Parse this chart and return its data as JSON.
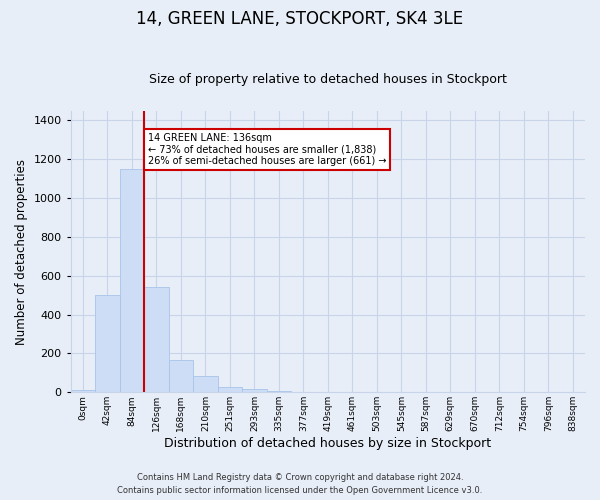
{
  "title": "14, GREEN LANE, STOCKPORT, SK4 3LE",
  "subtitle": "Size of property relative to detached houses in Stockport",
  "xlabel": "Distribution of detached houses by size in Stockport",
  "ylabel": "Number of detached properties",
  "bar_values": [
    10,
    500,
    1150,
    540,
    165,
    85,
    28,
    18,
    8,
    0,
    0,
    0,
    0,
    0,
    0,
    0,
    0,
    0,
    0,
    0,
    0
  ],
  "bin_labels": [
    "0sqm",
    "42sqm",
    "84sqm",
    "126sqm",
    "168sqm",
    "210sqm",
    "251sqm",
    "293sqm",
    "335sqm",
    "377sqm",
    "419sqm",
    "461sqm",
    "503sqm",
    "545sqm",
    "587sqm",
    "629sqm",
    "670sqm",
    "712sqm",
    "754sqm",
    "796sqm",
    "838sqm"
  ],
  "bar_color": "#ccddf5",
  "bar_edge_color": "#a8c4e8",
  "vline_x": 3,
  "vline_color": "#cc0000",
  "annotation_title": "14 GREEN LANE: 136sqm",
  "annotation_line1": "← 73% of detached houses are smaller (1,838)",
  "annotation_line2": "26% of semi-detached houses are larger (661) →",
  "annotation_box_color": "#ffffff",
  "annotation_box_edge": "#cc0000",
  "ylim": [
    0,
    1450
  ],
  "yticks": [
    0,
    200,
    400,
    600,
    800,
    1000,
    1200,
    1400
  ],
  "footer1": "Contains HM Land Registry data © Crown copyright and database right 2024.",
  "footer2": "Contains public sector information licensed under the Open Government Licence v3.0.",
  "background_color": "#e8eef8",
  "grid_color": "#c8d4e8",
  "title_fontsize": 12,
  "subtitle_fontsize": 9,
  "xlabel_fontsize": 9,
  "ylabel_fontsize": 8.5
}
